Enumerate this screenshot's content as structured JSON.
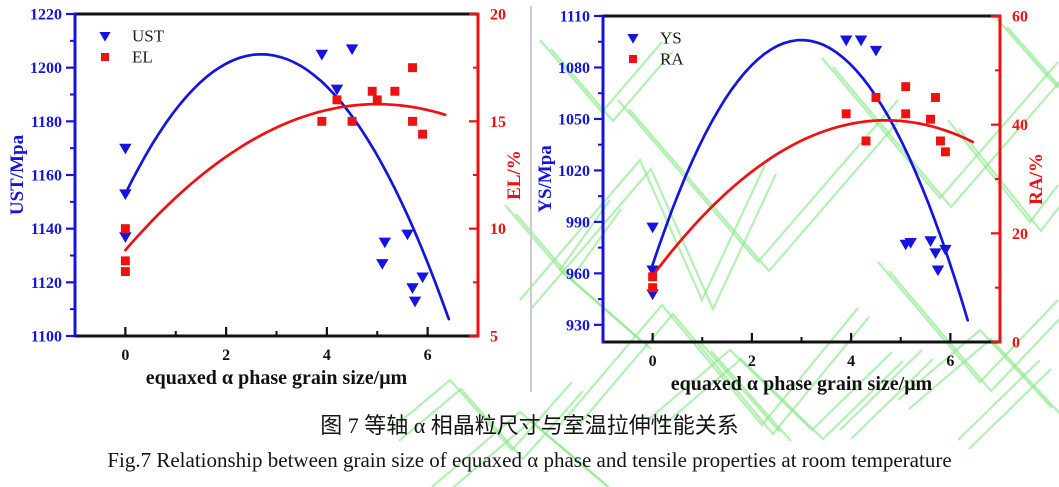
{
  "figure": {
    "caption_zh": "图 7 等轴 α 相晶粒尺寸与室温拉伸性能关系",
    "caption_en": "Fig.7 Relationship between grain size of equaxed α phase and tensile properties at room temperature"
  },
  "colors": {
    "blue": "#1414dc",
    "red": "#ee1111",
    "axis_black": "#111111",
    "divider_gray": "#cccccc",
    "watermark_green": "#8ce68c"
  },
  "chart_data": [
    {
      "type": "scatter",
      "xlabel": "equaxed α phase grain size/μm",
      "xlim": [
        -1,
        7
      ],
      "x_axis": {
        "majors": [
          0,
          2,
          4,
          6
        ],
        "minors": [
          1,
          3,
          5,
          7
        ]
      },
      "left_axis": {
        "label": "UST/Mpa",
        "color": "#1414dc",
        "lim": [
          1100,
          1220
        ],
        "majors": [
          1100,
          1120,
          1140,
          1160,
          1180,
          1200,
          1220
        ],
        "minors": [
          1110,
          1130,
          1150,
          1170,
          1190,
          1210
        ]
      },
      "right_axis": {
        "label": "EL/%",
        "color": "#ee1111",
        "lim": [
          5,
          20
        ],
        "majors": [
          5,
          10,
          15,
          20
        ],
        "minors": [
          7.5,
          12.5,
          17.5
        ]
      },
      "legend": [
        "UST",
        "EL"
      ],
      "series": [
        {
          "name": "UST",
          "axis": "left",
          "marker": "triangle-down",
          "color": "#1414dc",
          "points": [
            [
              0,
              1170
            ],
            [
              0,
              1153
            ],
            [
              0,
              1137
            ],
            [
              3.9,
              1205
            ],
            [
              4.2,
              1192
            ],
            [
              4.5,
              1207
            ],
            [
              5.1,
              1127
            ],
            [
              5.15,
              1135
            ],
            [
              5.6,
              1138
            ],
            [
              5.7,
              1118
            ],
            [
              5.75,
              1113
            ],
            [
              5.9,
              1122
            ]
          ],
          "fit_curve": {
            "shape": "parabola",
            "peak": [
              2.7,
              1205
            ],
            "start": [
              0,
              1153
            ],
            "x_end": 6.42
          }
        },
        {
          "name": "EL",
          "axis": "right",
          "marker": "square",
          "color": "#ee1111",
          "points": [
            [
              0,
              10
            ],
            [
              0,
              8.5
            ],
            [
              0,
              8
            ],
            [
              3.9,
              15
            ],
            [
              4.2,
              16
            ],
            [
              4.5,
              15
            ],
            [
              4.9,
              16.4
            ],
            [
              5.0,
              16
            ],
            [
              5.35,
              16.4
            ],
            [
              5.7,
              17.5
            ],
            [
              5.7,
              15
            ],
            [
              5.9,
              14.4
            ]
          ],
          "fit_curve": {
            "shape": "parabola",
            "peak": [
              5.0,
              15.8
            ],
            "start": [
              0,
              9.0
            ],
            "x_end": 6.35
          }
        }
      ]
    },
    {
      "type": "scatter",
      "xlabel": "equaxed α phase grain size/μm",
      "xlim": [
        -1,
        7
      ],
      "x_axis": {
        "majors": [
          0,
          2,
          4,
          6
        ],
        "minors": [
          1,
          3,
          5,
          7
        ]
      },
      "left_axis": {
        "label": "YS/Mpa",
        "color": "#1414dc",
        "lim": [
          920,
          1110
        ],
        "majors": [
          930,
          960,
          990,
          1020,
          1050,
          1080,
          1110
        ],
        "minors": [
          945,
          975,
          1005,
          1035,
          1065,
          1095
        ]
      },
      "right_axis": {
        "label": "RA/%",
        "color": "#ee1111",
        "lim": [
          0,
          60
        ],
        "majors": [
          0,
          20,
          40,
          60
        ],
        "minors": [
          10,
          30,
          50
        ]
      },
      "legend": [
        "YS",
        "RA"
      ],
      "series": [
        {
          "name": "YS",
          "axis": "left",
          "marker": "triangle-down",
          "color": "#1414dc",
          "points": [
            [
              0,
              987
            ],
            [
              0,
              962
            ],
            [
              0,
              948
            ],
            [
              3.9,
              1096
            ],
            [
              4.2,
              1096
            ],
            [
              4.5,
              1090
            ],
            [
              5.1,
              977
            ],
            [
              5.2,
              978
            ],
            [
              5.6,
              979
            ],
            [
              5.7,
              972
            ],
            [
              5.9,
              974
            ],
            [
              5.75,
              962
            ]
          ],
          "fit_curve": {
            "shape": "parabola",
            "peak": [
              3.0,
              1096
            ],
            "start": [
              0,
              965
            ],
            "x_end": 6.35
          }
        },
        {
          "name": "RA",
          "axis": "right",
          "marker": "square",
          "color": "#ee1111",
          "points": [
            [
              0,
              12
            ],
            [
              0,
              10
            ],
            [
              3.9,
              42
            ],
            [
              4.3,
              37
            ],
            [
              4.5,
              45
            ],
            [
              5.1,
              47
            ],
            [
              5.1,
              42
            ],
            [
              5.6,
              41
            ],
            [
              5.7,
              45
            ],
            [
              5.8,
              37
            ],
            [
              5.9,
              35
            ]
          ],
          "fit_curve": {
            "shape": "parabola",
            "peak": [
              4.7,
              40.8
            ],
            "start": [
              0,
              12.2
            ],
            "x_end": 6.45
          }
        }
      ]
    }
  ]
}
